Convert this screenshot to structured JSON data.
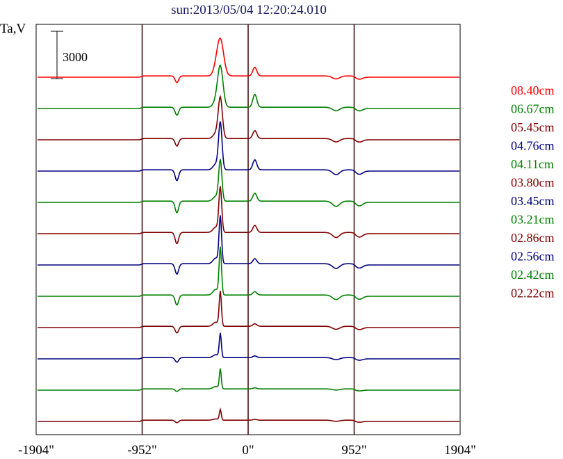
{
  "chart_data": {
    "type": "line",
    "title": "sun:2013/05/04 12:20:24.010",
    "ylabel": "Ta,V",
    "scale_bar_label": "3000",
    "scale_bar_value": 3000,
    "x_ticks": [
      {
        "value": -1904,
        "label": "-1904\""
      },
      {
        "value": -952,
        "label": "-952\""
      },
      {
        "value": 0,
        "label": "0\""
      },
      {
        "value": 952,
        "label": "952\""
      },
      {
        "value": 1904,
        "label": "1904\""
      }
    ],
    "xlim": [
      -1904,
      1904
    ],
    "vertical_lines": [
      -952,
      0,
      952
    ],
    "grid": false,
    "legend_position": "right",
    "series": [
      {
        "name": "08.40cm",
        "color": "#ff0000",
        "baseline_offset": 16500,
        "peak": 1750,
        "peak_width": 42,
        "dip": 320,
        "bump": 420
      },
      {
        "name": "06.67cm",
        "color": "#008000",
        "baseline_offset": 15000,
        "peak": 1950,
        "peak_width": 34,
        "dip": 380,
        "bump": 620
      },
      {
        "name": "05.45cm",
        "color": "#800000",
        "baseline_offset": 13500,
        "peak": 1950,
        "peak_width": 26,
        "dip": 360,
        "bump": 380
      },
      {
        "name": "04.76cm",
        "color": "#000080",
        "baseline_offset": 12000,
        "peak": 2250,
        "peak_width": 22,
        "dip": 520,
        "bump": 480
      },
      {
        "name": "04.11cm",
        "color": "#008000",
        "baseline_offset": 10500,
        "peak": 1950,
        "peak_width": 20,
        "dip": 560,
        "bump": 380
      },
      {
        "name": "03.80cm",
        "color": "#800000",
        "baseline_offset": 9000,
        "peak": 2150,
        "peak_width": 18,
        "dip": 540,
        "bump": 340
      },
      {
        "name": "03.45cm",
        "color": "#000080",
        "baseline_offset": 7500,
        "peak": 2250,
        "peak_width": 16,
        "dip": 500,
        "bump": 240
      },
      {
        "name": "03.21cm",
        "color": "#008000",
        "baseline_offset": 6000,
        "peak": 2250,
        "peak_width": 15,
        "dip": 480,
        "bump": 160
      },
      {
        "name": "02.86cm",
        "color": "#800000",
        "baseline_offset": 4500,
        "peak": 1650,
        "peak_width": 14,
        "dip": 320,
        "bump": 120
      },
      {
        "name": "02.56cm",
        "color": "#000080",
        "baseline_offset": 3000,
        "peak": 1150,
        "peak_width": 13,
        "dip": 220,
        "bump": 80
      },
      {
        "name": "02.42cm",
        "color": "#008000",
        "baseline_offset": 1500,
        "peak": 950,
        "peak_width": 12,
        "dip": 120,
        "bump": 50
      },
      {
        "name": "02.22cm",
        "color": "#800000",
        "baseline_offset": 0,
        "peak": 500,
        "peak_width": 12,
        "dip": 120,
        "bump": 40
      }
    ]
  }
}
